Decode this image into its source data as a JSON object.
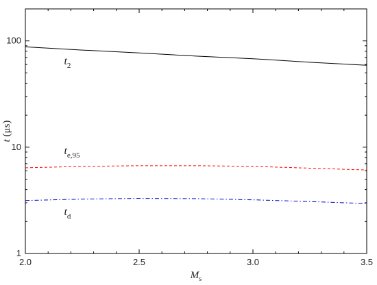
{
  "chart_data": {
    "type": "line",
    "xlabel": {
      "main": "M",
      "sub": "s"
    },
    "ylabel": {
      "main": "t",
      "unit": " (μs)"
    },
    "xlim": [
      2.0,
      3.5
    ],
    "ylim": [
      1,
      200
    ],
    "yscale": "log",
    "xticks": [
      "2.0",
      "2.5",
      "3.0",
      "3.5"
    ],
    "yticks": [
      "1",
      "10",
      "100"
    ],
    "grid": false,
    "series": [
      {
        "name": "t_2",
        "color": "#000000",
        "dash": "solid",
        "x": [
          2.0,
          2.25,
          2.5,
          2.75,
          3.0,
          3.25,
          3.5
        ],
        "y": [
          88,
          82,
          77,
          72,
          68,
          63,
          59
        ]
      },
      {
        "name": "t_e,95",
        "color": "#ff0000",
        "dash": "dashed",
        "x": [
          2.0,
          2.25,
          2.5,
          2.75,
          3.0,
          3.25,
          3.5
        ],
        "y": [
          6.4,
          6.6,
          6.7,
          6.7,
          6.6,
          6.35,
          6.1
        ]
      },
      {
        "name": "t_d",
        "color": "#0000cc",
        "dash": "dashdot",
        "x": [
          2.0,
          2.25,
          2.5,
          2.75,
          3.0,
          3.25,
          3.5
        ],
        "y": [
          3.15,
          3.25,
          3.3,
          3.28,
          3.2,
          3.08,
          2.95
        ]
      }
    ],
    "annotations": [
      {
        "main": "t",
        "sub": "2",
        "x": 2.17,
        "y": 60
      },
      {
        "main": "t",
        "sub": "e,95",
        "x": 2.17,
        "y": 8.6
      },
      {
        "main": "t",
        "sub": "d",
        "x": 2.17,
        "y": 2.3
      }
    ]
  }
}
